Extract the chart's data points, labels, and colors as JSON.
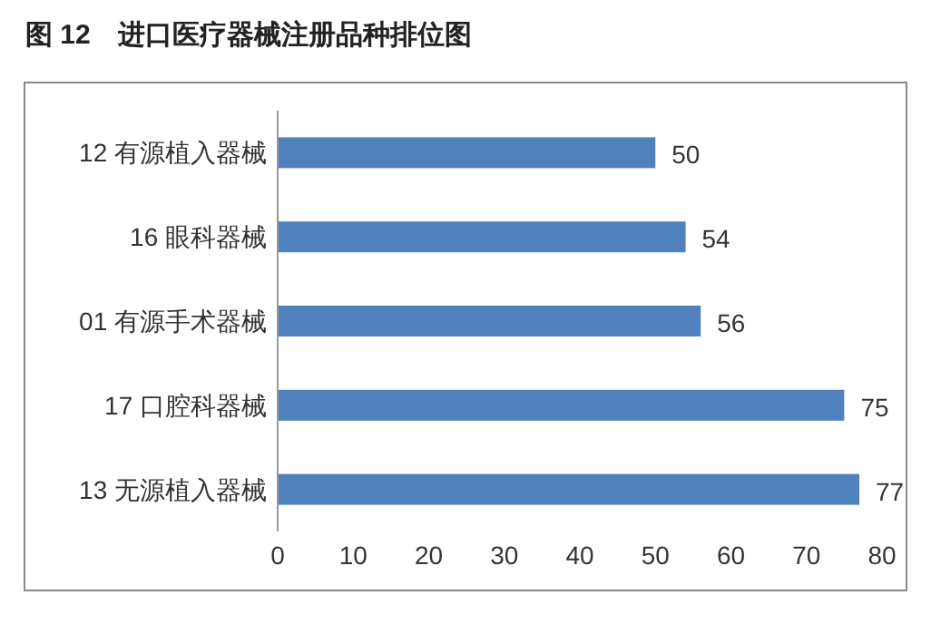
{
  "chart_data": {
    "type": "bar",
    "orientation": "horizontal",
    "title": "图 12　进口医疗器械注册品种排位图",
    "categories": [
      "12 有源植入器械",
      "16 眼科器械",
      "01 有源手术器械",
      "17 口腔科器械",
      "13 无源植入器械"
    ],
    "values": [
      50,
      54,
      56,
      75,
      77
    ],
    "color": "#4f81bd",
    "data_labels": true,
    "xlim": [
      0,
      80
    ],
    "xticks": [
      0,
      10,
      20,
      30,
      40,
      50,
      60,
      70,
      80
    ]
  }
}
